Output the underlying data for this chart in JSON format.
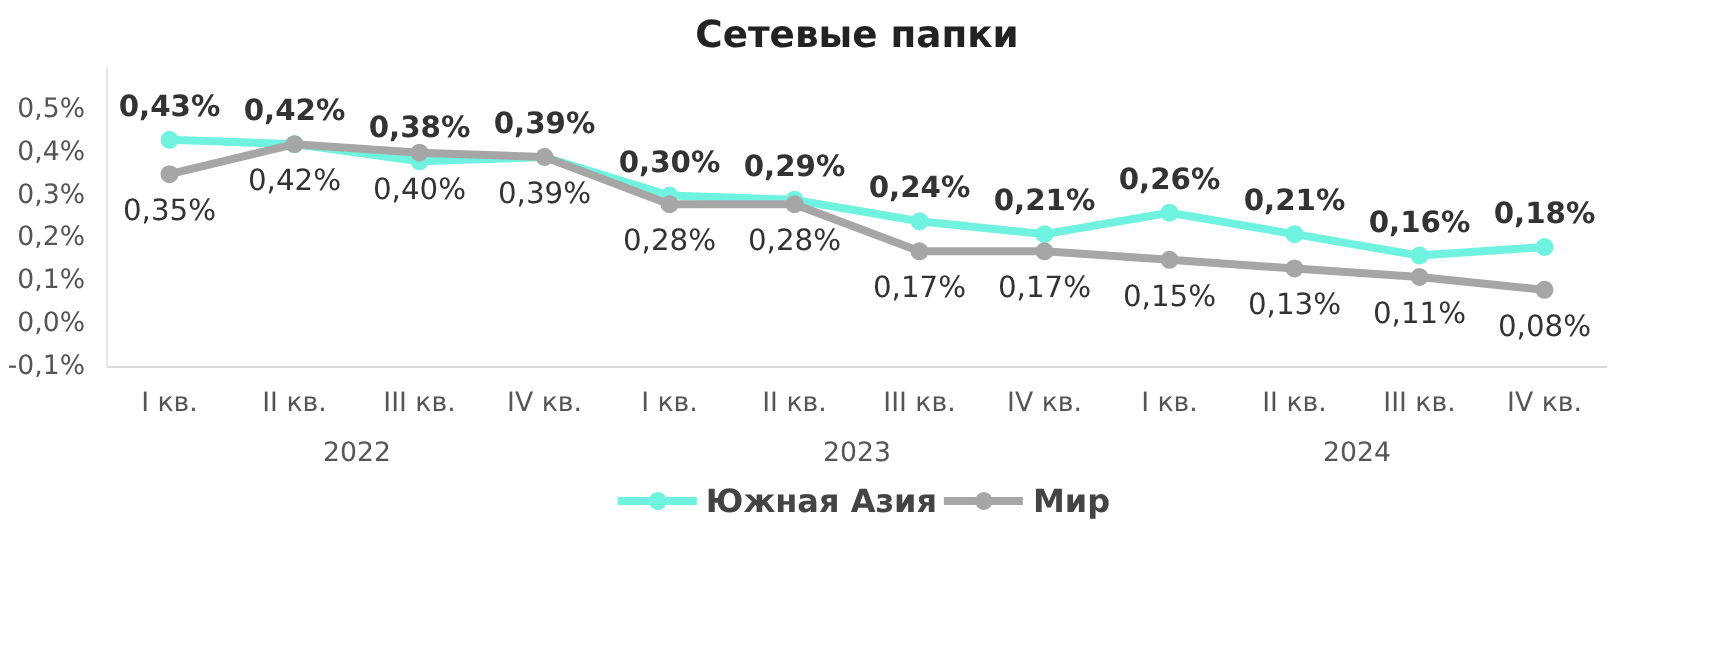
{
  "chart_data": {
    "type": "line",
    "title": "Сетевые папки",
    "categories": [
      "I кв.",
      "II кв.",
      "III кв.",
      "IV кв.",
      "I кв.",
      "II кв.",
      "III кв.",
      "IV кв.",
      "I кв.",
      "II кв.",
      "III кв.",
      "IV кв."
    ],
    "annotations": [
      "2022",
      "2023",
      "2024"
    ],
    "series": [
      {
        "name": "Южная Азия",
        "color": "#6ff3e0",
        "values": [
          0.43,
          0.42,
          0.38,
          0.39,
          0.3,
          0.29,
          0.24,
          0.21,
          0.26,
          0.21,
          0.16,
          0.18
        ],
        "value_labels": [
          "0,43%",
          "0,42%",
          "0,38%",
          "0,39%",
          "0,30%",
          "0,29%",
          "0,24%",
          "0,21%",
          "0,26%",
          "0,21%",
          "0,16%",
          "0,18%"
        ]
      },
      {
        "name": "Мир",
        "color": "#a6a6a6",
        "values": [
          0.35,
          0.42,
          0.4,
          0.39,
          0.28,
          0.28,
          0.17,
          0.17,
          0.15,
          0.13,
          0.11,
          0.08
        ],
        "value_labels": [
          "0,35%",
          "0,42%",
          "0,40%",
          "0,39%",
          "0,28%",
          "0,28%",
          "0,17%",
          "0,17%",
          "0,15%",
          "0,13%",
          "0,11%",
          "0,08%"
        ]
      }
    ],
    "ylim": [
      -0.1,
      0.6
    ],
    "yticks": [
      {
        "value": -0.1,
        "label": "-0,1%"
      },
      {
        "value": 0.0,
        "label": "0,0%"
      },
      {
        "value": 0.1,
        "label": "0,1%"
      },
      {
        "value": 0.2,
        "label": "0,2%"
      },
      {
        "value": 0.3,
        "label": "0,3%"
      },
      {
        "value": 0.4,
        "label": "0,4%"
      },
      {
        "value": 0.5,
        "label": "0,5%"
      }
    ],
    "grid": false,
    "legend": "bottom",
    "marker": "circle",
    "line_style": "solid"
  }
}
